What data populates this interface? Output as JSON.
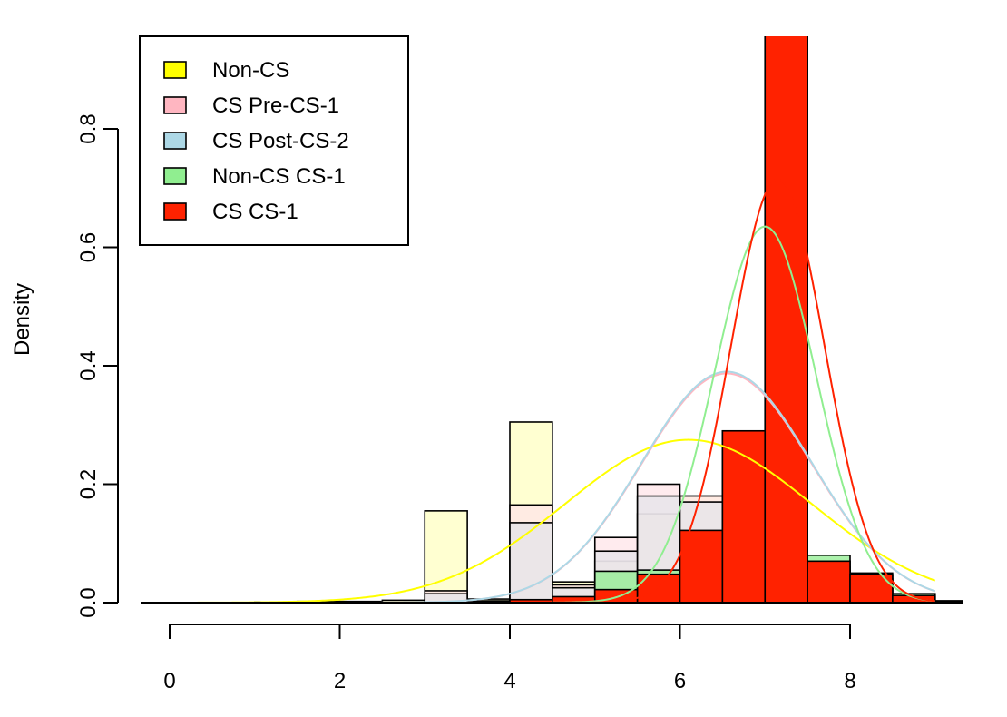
{
  "chart_data": {
    "type": "histogram",
    "title": "",
    "xlabel": "",
    "ylabel": "Density",
    "xlim": [
      0,
      9.4
    ],
    "ylim": [
      0,
      0.95
    ],
    "x_ticks": [
      0,
      2,
      4,
      6,
      8
    ],
    "x_tick_labels": [
      "0",
      "2",
      "4",
      "6",
      "8"
    ],
    "y_ticks": [
      0.0,
      0.2,
      0.4,
      0.6,
      0.8
    ],
    "y_tick_labels": [
      "0.0",
      "0.2",
      "0.4",
      "0.6",
      "0.8"
    ],
    "bin_edges": [
      0,
      0.5,
      1,
      1.5,
      2,
      2.5,
      3,
      3.5,
      4,
      4.5,
      5,
      5.5,
      6,
      6.5,
      7,
      7.5,
      8,
      8.5,
      9,
      9.5
    ],
    "legend": {
      "position": "top-left"
    },
    "series": [
      {
        "name": "Non-CS",
        "fill": "#FFFFC2",
        "legend_color": "#FFFF00",
        "curve_color": "#FFFF00",
        "densities": [
          0,
          0,
          0.001,
          0.002,
          0.002,
          0.004,
          0.155,
          0.006,
          0.305,
          0.035,
          0.07,
          0.15,
          0.18,
          0.09,
          0.03,
          0.01,
          0.002,
          0.002,
          0.001
        ],
        "curve": {
          "mean": 6.1,
          "sd": 1.45,
          "peak": 0.275
        }
      },
      {
        "name": "CS Pre-CS-1",
        "fill": "#FFE4E8",
        "legend_color": "#FFB6C1",
        "curve_color": "#FFB6C1",
        "densities": [
          0,
          0,
          0,
          0,
          0,
          0,
          0.02,
          0.003,
          0.165,
          0.03,
          0.11,
          0.2,
          0.18,
          0.2,
          0.15,
          0.06,
          0.04,
          0.01,
          0.002
        ],
        "curve": {
          "mean": 6.55,
          "sd": 1.0,
          "peak": 0.387
        }
      },
      {
        "name": "CS Post-CS-2",
        "fill": "#E4E4EA",
        "legend_color": "#ADD8E6",
        "curve_color": "#ADD8E6",
        "densities": [
          0,
          0,
          0,
          0,
          0,
          0,
          0.015,
          0.002,
          0.135,
          0.025,
          0.087,
          0.18,
          0.17,
          0.22,
          0.18,
          0.07,
          0.045,
          0.015,
          0.003
        ],
        "curve": {
          "mean": 6.55,
          "sd": 1.0,
          "peak": 0.39
        }
      },
      {
        "name": "Non-CS CS-1",
        "fill": "#90EE90",
        "legend_color": "#90EE90",
        "curve_color": "#90EE90",
        "densities": [
          0,
          0,
          0,
          0,
          0,
          0,
          0,
          0,
          0,
          0,
          0.053,
          0.055,
          0.12,
          0.29,
          0.97,
          0.08,
          0.05,
          0.015,
          0.003
        ],
        "curve": {
          "mean": 7.0,
          "sd": 0.6,
          "peak": 0.635
        }
      },
      {
        "name": "CS CS-1",
        "fill": "#FF2200",
        "legend_color": "#FF2200",
        "curve_color": "#FF2200",
        "densities": [
          0,
          0,
          0,
          0,
          0,
          0,
          0,
          0,
          0.005,
          0.01,
          0.022,
          0.048,
          0.122,
          0.29,
          0.97,
          0.07,
          0.048,
          0.012,
          0.002
        ],
        "curve": {
          "mean": 7.15,
          "sd": 0.55,
          "peak": 0.715
        }
      }
    ]
  }
}
